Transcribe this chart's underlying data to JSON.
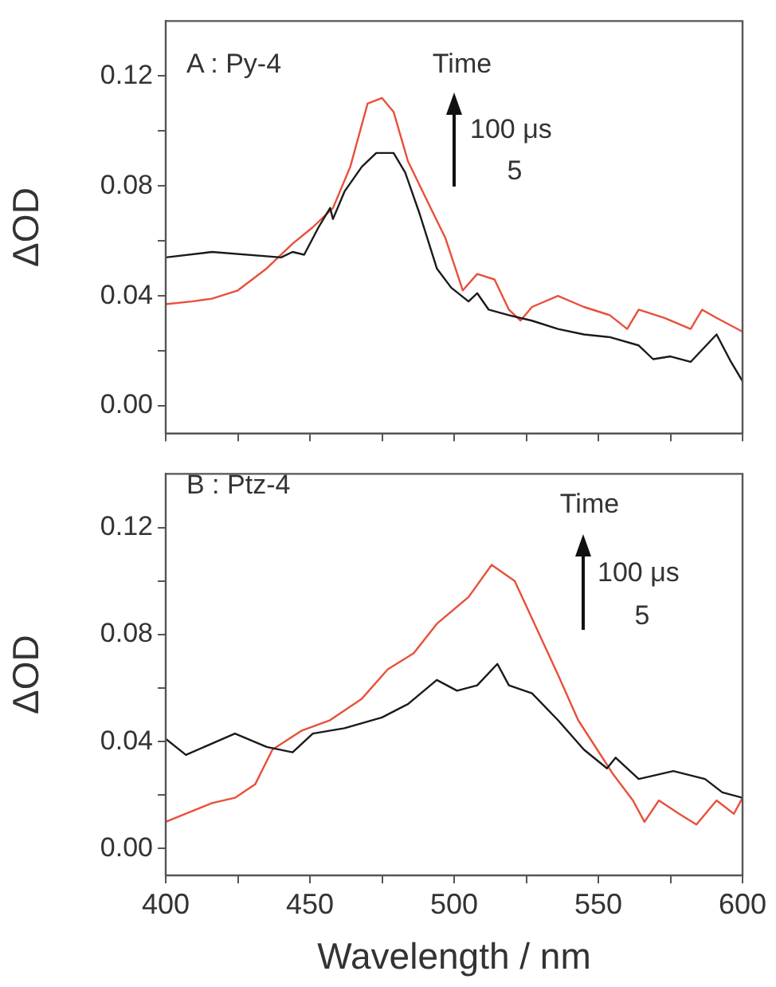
{
  "chart_data": [
    {
      "type": "line",
      "ylabel": "ΔOD",
      "xlim": [
        400,
        600
      ],
      "ylim": [
        -0.01,
        0.14
      ],
      "xticks": [
        400,
        {
          "value": 425,
          "label": null
        },
        450,
        {
          "value": 475,
          "label": null
        },
        500,
        {
          "value": 525,
          "label": null
        },
        550,
        {
          "value": 575,
          "label": null
        },
        600
      ],
      "yticks": [
        {
          "value": 0,
          "label": "0.00"
        },
        {
          "value": 0.02,
          "label": null
        },
        {
          "value": 0.04,
          "label": "0.04"
        },
        {
          "value": 0.06,
          "label": null
        },
        {
          "value": 0.08,
          "label": "0.08"
        },
        {
          "value": 0.1,
          "label": null
        },
        {
          "value": 0.12,
          "label": "0.12"
        }
      ],
      "tick_labels": "y",
      "grid": false,
      "legend": false,
      "marker": "none",
      "line_style": "solid",
      "annotations": [
        "A : Py-4",
        "Time",
        "100 μs",
        "5"
      ],
      "series": [
        {
          "color": "#1a1a1a",
          "x": [
            400,
            416,
            440,
            444,
            448,
            453,
            457,
            458,
            462,
            468,
            473,
            479,
            483,
            488,
            494,
            499,
            505,
            508,
            512,
            519,
            527,
            536,
            545,
            554,
            564,
            569,
            575,
            582,
            591,
            596,
            600
          ],
          "values": [
            0.054,
            0.056,
            0.054,
            0.056,
            0.055,
            0.065,
            0.072,
            0.068,
            0.078,
            0.087,
            0.092,
            0.092,
            0.085,
            0.07,
            0.05,
            0.043,
            0.038,
            0.041,
            0.035,
            0.033,
            0.031,
            0.028,
            0.026,
            0.025,
            0.022,
            0.017,
            0.018,
            0.016,
            0.026,
            0.016,
            0.009
          ]
        },
        {
          "color": "#e8503a",
          "x": [
            400,
            409,
            416,
            425,
            430,
            435,
            444,
            451,
            458,
            464,
            470,
            475,
            479,
            484,
            490,
            497,
            503,
            508,
            514,
            519,
            523,
            527,
            536,
            545,
            554,
            560,
            564,
            573,
            582,
            586,
            591,
            600
          ],
          "values": [
            0.037,
            0.038,
            0.039,
            0.042,
            0.046,
            0.05,
            0.059,
            0.065,
            0.072,
            0.087,
            0.11,
            0.112,
            0.107,
            0.089,
            0.076,
            0.061,
            0.042,
            0.048,
            0.046,
            0.035,
            0.031,
            0.036,
            0.04,
            0.036,
            0.033,
            0.028,
            0.035,
            0.032,
            0.028,
            0.035,
            0.032,
            0.027
          ]
        }
      ]
    },
    {
      "type": "line",
      "ylabel": "ΔOD",
      "xlabel": "Wavelength / nm",
      "xlim": [
        400,
        600
      ],
      "ylim": [
        -0.01,
        0.14
      ],
      "xticks": [
        400,
        {
          "value": 425,
          "label": null
        },
        450,
        {
          "value": 475,
          "label": null
        },
        500,
        {
          "value": 525,
          "label": null
        },
        550,
        {
          "value": 575,
          "label": null
        },
        600
      ],
      "yticks": [
        {
          "value": 0,
          "label": "0.00"
        },
        {
          "value": 0.02,
          "label": null
        },
        {
          "value": 0.04,
          "label": "0.04"
        },
        {
          "value": 0.06,
          "label": null
        },
        {
          "value": 0.08,
          "label": "0.08"
        },
        {
          "value": 0.1,
          "label": null
        },
        {
          "value": 0.12,
          "label": "0.12"
        }
      ],
      "grid": false,
      "legend": false,
      "marker": "none",
      "line_style": "solid",
      "annotations": [
        "B : Ptz-4",
        "Time",
        "100 μs",
        "5"
      ],
      "series": [
        {
          "color": "#1a1a1a",
          "x": [
            400,
            407,
            424,
            435,
            444,
            451,
            462,
            475,
            484,
            494,
            501,
            508,
            515,
            519,
            527,
            536,
            545,
            553,
            556,
            564,
            576,
            587,
            593,
            600
          ],
          "values": [
            0.041,
            0.035,
            0.043,
            0.038,
            0.036,
            0.043,
            0.045,
            0.049,
            0.054,
            0.063,
            0.059,
            0.061,
            0.069,
            0.061,
            0.058,
            0.048,
            0.037,
            0.03,
            0.034,
            0.026,
            0.029,
            0.026,
            0.021,
            0.019
          ]
        },
        {
          "color": "#e8503a",
          "x": [
            400,
            416,
            424,
            431,
            437,
            447,
            457,
            468,
            477,
            486,
            494,
            505,
            513,
            521,
            527,
            536,
            543,
            555,
            562,
            566,
            571,
            578,
            584,
            591,
            597,
            600
          ],
          "values": [
            0.01,
            0.017,
            0.019,
            0.024,
            0.037,
            0.044,
            0.048,
            0.056,
            0.067,
            0.073,
            0.084,
            0.094,
            0.106,
            0.1,
            0.086,
            0.065,
            0.048,
            0.028,
            0.018,
            0.01,
            0.018,
            0.013,
            0.009,
            0.018,
            0.013,
            0.019
          ]
        }
      ]
    }
  ]
}
